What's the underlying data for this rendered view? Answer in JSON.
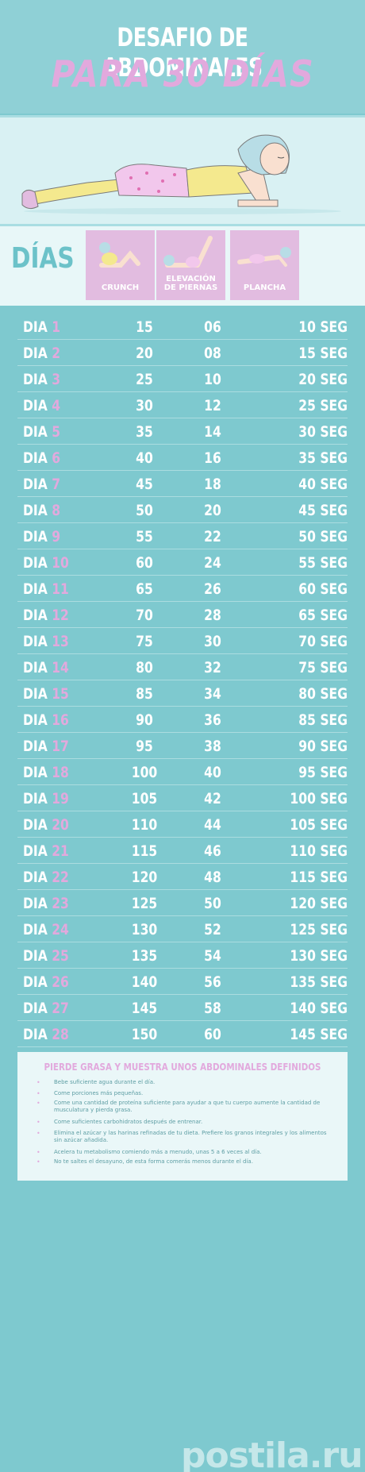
{
  "header": {
    "title_line1": "DESAFIO DE ABDOMINALES",
    "title_line2": "PARA 30 DÍAS"
  },
  "columns": {
    "days_label": "DÍAS",
    "exercises": [
      {
        "label_line1": "CRUNCH",
        "label_line2": ""
      },
      {
        "label_line1": "ELEVACIÓN",
        "label_line2": "DE PIERNAS"
      },
      {
        "label_line1": "PLANCHA",
        "label_line2": ""
      }
    ]
  },
  "rows": [
    {
      "day_word": "DIA",
      "day_num": "1",
      "crunch": "15",
      "legs": "06",
      "plank": "10 SEG"
    },
    {
      "day_word": "DIA",
      "day_num": "2",
      "crunch": "20",
      "legs": "08",
      "plank": "15 SEG"
    },
    {
      "day_word": "DIA",
      "day_num": "3",
      "crunch": "25",
      "legs": "10",
      "plank": "20 SEG"
    },
    {
      "day_word": "DIA",
      "day_num": "4",
      "crunch": "30",
      "legs": "12",
      "plank": "25 SEG"
    },
    {
      "day_word": "DIA",
      "day_num": "5",
      "crunch": "35",
      "legs": "14",
      "plank": "30 SEG"
    },
    {
      "day_word": "DIA",
      "day_num": "6",
      "crunch": "40",
      "legs": "16",
      "plank": "35 SEG"
    },
    {
      "day_word": "DIA",
      "day_num": "7",
      "crunch": "45",
      "legs": "18",
      "plank": "40 SEG"
    },
    {
      "day_word": "DIA",
      "day_num": "8",
      "crunch": "50",
      "legs": "20",
      "plank": "45 SEG"
    },
    {
      "day_word": "DIA",
      "day_num": "9",
      "crunch": "55",
      "legs": "22",
      "plank": "50 SEG"
    },
    {
      "day_word": "DIA",
      "day_num": "10",
      "crunch": "60",
      "legs": "24",
      "plank": "55 SEG"
    },
    {
      "day_word": "DIA",
      "day_num": "11",
      "crunch": "65",
      "legs": "26",
      "plank": "60 SEG"
    },
    {
      "day_word": "DIA",
      "day_num": "12",
      "crunch": "70",
      "legs": "28",
      "plank": "65 SEG"
    },
    {
      "day_word": "DIA",
      "day_num": "13",
      "crunch": "75",
      "legs": "30",
      "plank": "70 SEG"
    },
    {
      "day_word": "DIA",
      "day_num": "14",
      "crunch": "80",
      "legs": "32",
      "plank": "75 SEG"
    },
    {
      "day_word": "DIA",
      "day_num": "15",
      "crunch": "85",
      "legs": "34",
      "plank": "80 SEG"
    },
    {
      "day_word": "DIA",
      "day_num": "16",
      "crunch": "90",
      "legs": "36",
      "plank": "85 SEG"
    },
    {
      "day_word": "DIA",
      "day_num": "17",
      "crunch": "95",
      "legs": "38",
      "plank": "90 SEG"
    },
    {
      "day_word": "DIA",
      "day_num": "18",
      "crunch": "100",
      "legs": "40",
      "plank": "95 SEG"
    },
    {
      "day_word": "DIA",
      "day_num": "19",
      "crunch": "105",
      "legs": "42",
      "plank": "100 SEG"
    },
    {
      "day_word": "DIA",
      "day_num": "20",
      "crunch": "110",
      "legs": "44",
      "plank": "105 SEG"
    },
    {
      "day_word": "DIA",
      "day_num": "21",
      "crunch": "115",
      "legs": "46",
      "plank": "110 SEG"
    },
    {
      "day_word": "DIA",
      "day_num": "22",
      "crunch": "120",
      "legs": "48",
      "plank": "115 SEG"
    },
    {
      "day_word": "DIA",
      "day_num": "23",
      "crunch": "125",
      "legs": "50",
      "plank": "120 SEG"
    },
    {
      "day_word": "DIA",
      "day_num": "24",
      "crunch": "130",
      "legs": "52",
      "plank": "125 SEG"
    },
    {
      "day_word": "DIA",
      "day_num": "25",
      "crunch": "135",
      "legs": "54",
      "plank": "130 SEG"
    },
    {
      "day_word": "DIA",
      "day_num": "26",
      "crunch": "140",
      "legs": "56",
      "plank": "135 SEG"
    },
    {
      "day_word": "DIA",
      "day_num": "27",
      "crunch": "145",
      "legs": "58",
      "plank": "140 SEG"
    },
    {
      "day_word": "DIA",
      "day_num": "28",
      "crunch": "150",
      "legs": "60",
      "plank": "145 SEG"
    },
    {
      "day_word": "DIA",
      "day_num": "29",
      "crunch": "155",
      "legs": "62",
      "plank": "150 SEG"
    },
    {
      "day_word": "DIA",
      "day_num": "30",
      "crunch": "160",
      "legs": "64",
      "plank": "155 SEG"
    }
  ],
  "tips": {
    "title": "PIERDE GRASA Y MUESTRA UNOS ABDOMINALES DEFINIDOS",
    "bullet": "•",
    "items": [
      "Bebe suficiente agua durante el día.",
      "Come porciones más pequeñas.",
      "Come una cantidad de proteína suficiente para ayudar a que tu cuerpo aumente la cantidad de musculatura y pierda grasa.",
      "Come suficientes carbohidratos después de entrenar.",
      "Elimina el azúcar y las harinas refinadas de tu dieta. Prefiere los granos integrales y los alimentos sin azúcar añadida.",
      "Acelera tu metabolismo comiendo más a menudo, unas 5 a 6 veces al día.",
      "No te saltes el desayuno, de esta forma comerás menos durante el día."
    ]
  },
  "watermark": "postila.ru",
  "colors": {
    "background": "#7ec9cf",
    "accent_pink": "#e2a9dd",
    "light_band": "#d9f1f3",
    "card_pink": "#e2bce0"
  }
}
